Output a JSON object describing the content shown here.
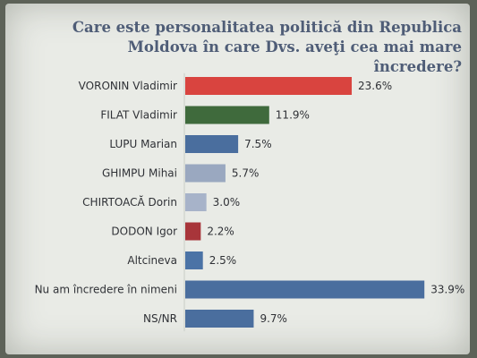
{
  "chart_data": {
    "type": "bar",
    "orientation": "horizontal",
    "title": [
      "Care este personalitatea politică din Republica",
      "Moldova în care Dvs. aveţi cea mai mare încredere?"
    ],
    "categories": [
      "VORONIN Vladimir",
      "FILAT Vladimir",
      "LUPU Marian",
      "GHIMPU Mihai",
      "CHIRTOACĂ Dorin",
      "DODON Igor",
      "Altcineva",
      "Nu am încredere în nimeni",
      "NS/NR"
    ],
    "values": [
      23.6,
      11.9,
      7.5,
      5.7,
      3.0,
      2.2,
      2.5,
      33.9,
      9.7
    ],
    "value_labels": [
      "23.6%",
      "11.9%",
      "7.5%",
      "5.7%",
      "3.0%",
      "2.2%",
      "2.5%",
      "33.9%",
      "9.7%"
    ],
    "bar_colors": [
      "#d9443f",
      "#3f6a3c",
      "#4a6e9e",
      "#9aa8c0",
      "#a7b3c9",
      "#a8353a",
      "#4b73a6",
      "#4a6e9e",
      "#4a6e9e"
    ],
    "xlim": [
      0,
      34
    ],
    "grid": false,
    "legend": "none"
  }
}
